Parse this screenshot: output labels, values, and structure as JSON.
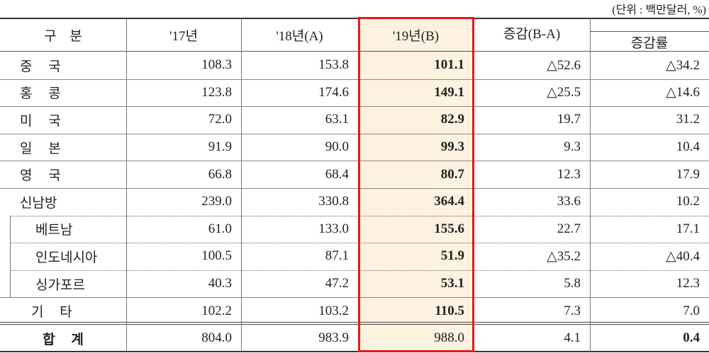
{
  "unit_note": "(단위 : 백만달러, %)",
  "table": {
    "header": [
      "구 분",
      "'17년",
      "'18년(A)",
      "'19년(B)",
      "증감(B-A)",
      "증감률"
    ],
    "rows": [
      [
        "중 국",
        "108.3",
        "153.8",
        "101.1",
        "△52.6",
        "△34.2"
      ],
      [
        "홍 콩",
        "123.8",
        "174.6",
        "149.1",
        "△25.5",
        "△14.6"
      ],
      [
        "미 국",
        "72.0",
        "63.1",
        "82.9",
        "19.7",
        "31.2"
      ],
      [
        "일 본",
        "91.9",
        "90.0",
        "99.3",
        "9.3",
        "10.4"
      ],
      [
        "영 국",
        "66.8",
        "68.4",
        "80.7",
        "12.3",
        "17.9"
      ],
      [
        "신남방",
        "239.0",
        "330.8",
        "364.4",
        "33.6",
        "10.2"
      ],
      [
        "베트남",
        "61.0",
        "133.0",
        "155.6",
        "22.7",
        "17.1"
      ],
      [
        "인도네시아",
        "100.5",
        "87.1",
        "51.9",
        "△35.2",
        "△40.4"
      ],
      [
        "싱가포르",
        "40.3",
        "47.2",
        "53.1",
        "5.8",
        "12.3"
      ],
      [
        "기 타",
        "102.2",
        "103.2",
        "110.5",
        "7.3",
        "7.0"
      ],
      [
        "합 계",
        "804.0",
        "983.9",
        "988.0",
        "4.1",
        "0.4"
      ]
    ]
  }
}
